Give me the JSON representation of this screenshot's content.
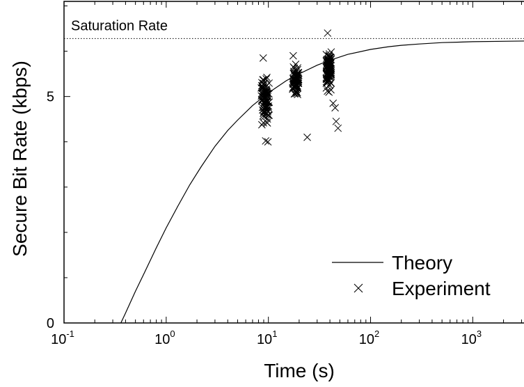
{
  "chart_data": {
    "type": "scatter",
    "title": "",
    "xlabel": "Time (s)",
    "ylabel": "Secure Bit Rate (kbps)",
    "x_scale": "log",
    "xlim": [
      0.1,
      5000
    ],
    "ylim": [
      0,
      7.1
    ],
    "x_ticks": [
      {
        "base": "10",
        "exp": "-1",
        "value": 0.1
      },
      {
        "base": "10",
        "exp": "0",
        "value": 1
      },
      {
        "base": "10",
        "exp": "1",
        "value": 10
      },
      {
        "base": "10",
        "exp": "2",
        "value": 100
      },
      {
        "base": "10",
        "exp": "3",
        "value": 1000
      }
    ],
    "y_ticks": [
      {
        "label": "0",
        "value": 0
      },
      {
        "label": "5",
        "value": 5
      }
    ],
    "grid": false,
    "legend": {
      "placement": "bottom-right",
      "entries": [
        {
          "label": "Theory",
          "marker": "line"
        },
        {
          "label": "Experiment",
          "marker": "x"
        }
      ]
    },
    "annotations": [
      {
        "text": "Saturation Rate",
        "y": 6.28,
        "style": "dotted-line"
      }
    ],
    "series": [
      {
        "name": "Theory",
        "kind": "line",
        "x": [
          0.36,
          0.4,
          0.5,
          0.6,
          0.8,
          1,
          1.3,
          1.7,
          2.2,
          3,
          4,
          5,
          7,
          10,
          15,
          20,
          30,
          40,
          60,
          100,
          150,
          200,
          300,
          500,
          700,
          1000,
          2000,
          5000
        ],
        "y": [
          0.0,
          0.22,
          0.7,
          1.07,
          1.66,
          2.1,
          2.58,
          3.05,
          3.45,
          3.9,
          4.25,
          4.48,
          4.8,
          5.08,
          5.35,
          5.5,
          5.69,
          5.8,
          5.93,
          6.04,
          6.1,
          6.13,
          6.16,
          6.19,
          6.2,
          6.21,
          6.22,
          6.23
        ]
      },
      {
        "name": "Experiment",
        "kind": "scatter",
        "clusters": [
          {
            "x": 9.3,
            "x_spread": 0.08,
            "y_min": 4.2,
            "y_max": 5.6,
            "count": 90
          },
          {
            "x": 18.5,
            "x_spread": 0.06,
            "y_min": 4.9,
            "y_max": 5.8,
            "count": 70
          },
          {
            "x": 39,
            "x_spread": 0.05,
            "y_min": 5.0,
            "y_max": 6.2,
            "count": 100
          }
        ],
        "points": [
          {
            "x": 8.9,
            "y": 5.85
          },
          {
            "x": 9.4,
            "y": 4.02
          },
          {
            "x": 9.9,
            "y": 4.0
          },
          {
            "x": 17.5,
            "y": 5.9
          },
          {
            "x": 24,
            "y": 4.1
          },
          {
            "x": 38,
            "y": 6.4
          },
          {
            "x": 45,
            "y": 4.75
          },
          {
            "x": 46,
            "y": 4.45
          },
          {
            "x": 48,
            "y": 4.3
          },
          {
            "x": 43,
            "y": 4.85
          }
        ]
      }
    ]
  }
}
